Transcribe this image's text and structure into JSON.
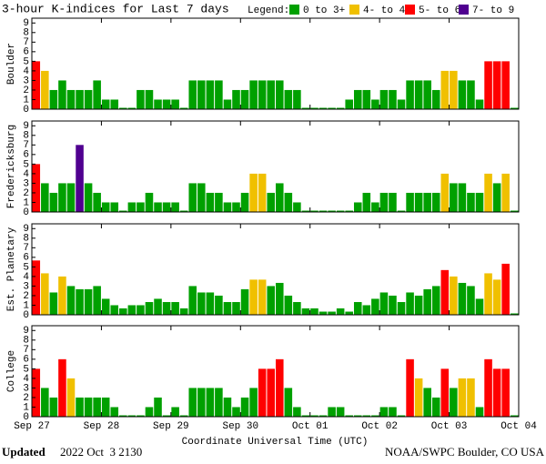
{
  "header": {
    "title": "3-hour K-indices for Last 7 days",
    "legend_label": "Legend:",
    "legend": [
      {
        "label": "0 to 3+",
        "color": "#00a000"
      },
      {
        "label": "4- to 4+",
        "color": "#f0c000"
      },
      {
        "label": "5- to 6+",
        "color": "#ff0000"
      },
      {
        "label": "7- to 9",
        "color": "#500090"
      }
    ]
  },
  "x_axis_label": "Coordinate Universal Time (UTC)",
  "footer": {
    "updated": "Updated",
    "date": "2022 Oct  3 2130",
    "credit": "NOAA/SWPC Boulder, CO USA"
  },
  "chart_data": [
    {
      "type": "bar",
      "ylabel": "Boulder",
      "ylim": [
        0,
        9.5
      ],
      "yticks": [
        0,
        1,
        2,
        3,
        4,
        5,
        6,
        7,
        8,
        9
      ],
      "xlim": [
        0,
        56
      ],
      "xticks": [
        0,
        8,
        16,
        24,
        32,
        40,
        48,
        56
      ],
      "values": [
        5,
        4,
        2,
        3,
        2,
        2,
        2,
        3,
        1,
        1,
        0,
        0,
        2,
        2,
        1,
        1,
        1,
        0,
        3,
        3,
        3,
        3,
        1,
        2,
        2,
        3,
        3,
        3,
        3,
        2,
        2,
        0,
        0,
        0,
        0,
        0,
        1,
        2,
        2,
        1,
        2,
        2,
        1,
        3,
        3,
        3,
        2,
        4,
        4,
        3,
        3,
        1,
        5,
        5,
        5,
        0
      ],
      "colors": [
        "#ff0000",
        "#f0c000",
        "#00a000",
        "#00a000",
        "#00a000",
        "#00a000",
        "#00a000",
        "#00a000",
        "#00a000",
        "#00a000",
        "#00a000",
        "#00a000",
        "#00a000",
        "#00a000",
        "#00a000",
        "#00a000",
        "#00a000",
        "#00a000",
        "#00a000",
        "#00a000",
        "#00a000",
        "#00a000",
        "#00a000",
        "#00a000",
        "#00a000",
        "#00a000",
        "#00a000",
        "#00a000",
        "#00a000",
        "#00a000",
        "#00a000",
        "#00a000",
        "#00a000",
        "#00a000",
        "#00a000",
        "#00a000",
        "#00a000",
        "#00a000",
        "#00a000",
        "#00a000",
        "#00a000",
        "#00a000",
        "#00a000",
        "#00a000",
        "#00a000",
        "#00a000",
        "#00a000",
        "#f0c000",
        "#f0c000",
        "#00a000",
        "#00a000",
        "#00a000",
        "#ff0000",
        "#ff0000",
        "#ff0000",
        "#00a000"
      ]
    },
    {
      "type": "bar",
      "ylabel": "Fredericksburg",
      "ylim": [
        0,
        9.5
      ],
      "yticks": [
        0,
        1,
        2,
        3,
        4,
        5,
        6,
        7,
        8,
        9
      ],
      "xlim": [
        0,
        56
      ],
      "xticks": [
        0,
        8,
        16,
        24,
        32,
        40,
        48,
        56
      ],
      "values": [
        5,
        3,
        2,
        3,
        3,
        7,
        3,
        2,
        1,
        1,
        0,
        1,
        1,
        2,
        1,
        1,
        1,
        0,
        3,
        3,
        2,
        2,
        1,
        1,
        2,
        4,
        4,
        2,
        3,
        2,
        1,
        0,
        0,
        0,
        0,
        0,
        0,
        1,
        2,
        1,
        2,
        2,
        0,
        2,
        2,
        2,
        2,
        4,
        3,
        3,
        2,
        2,
        4,
        3,
        4,
        0
      ],
      "colors": [
        "#ff0000",
        "#00a000",
        "#00a000",
        "#00a000",
        "#00a000",
        "#500090",
        "#00a000",
        "#00a000",
        "#00a000",
        "#00a000",
        "#00a000",
        "#00a000",
        "#00a000",
        "#00a000",
        "#00a000",
        "#00a000",
        "#00a000",
        "#00a000",
        "#00a000",
        "#00a000",
        "#00a000",
        "#00a000",
        "#00a000",
        "#00a000",
        "#00a000",
        "#f0c000",
        "#f0c000",
        "#00a000",
        "#00a000",
        "#00a000",
        "#00a000",
        "#00a000",
        "#00a000",
        "#00a000",
        "#00a000",
        "#00a000",
        "#00a000",
        "#00a000",
        "#00a000",
        "#00a000",
        "#00a000",
        "#00a000",
        "#00a000",
        "#00a000",
        "#00a000",
        "#00a000",
        "#00a000",
        "#f0c000",
        "#00a000",
        "#00a000",
        "#00a000",
        "#00a000",
        "#f0c000",
        "#00a000",
        "#f0c000",
        "#00a000"
      ]
    },
    {
      "type": "bar",
      "ylabel": "Est. Planetary",
      "ylim": [
        0,
        9.5
      ],
      "yticks": [
        0,
        1,
        2,
        3,
        4,
        5,
        6,
        7,
        8,
        9
      ],
      "xlim": [
        0,
        56
      ],
      "xticks": [
        0,
        8,
        16,
        24,
        32,
        40,
        48,
        56
      ],
      "values": [
        5.67,
        4.33,
        2.33,
        4,
        3,
        2.67,
        2.67,
        3,
        1.67,
        1,
        0.67,
        1,
        1,
        1.33,
        1.67,
        1.33,
        1.33,
        0.67,
        3,
        2.33,
        2.33,
        2,
        1.33,
        1.33,
        2.67,
        3.67,
        3.67,
        3,
        3.33,
        2,
        1.33,
        0.67,
        0.67,
        0.33,
        0.33,
        0.67,
        0.33,
        1.33,
        1,
        1.67,
        2.33,
        2,
        1.33,
        2.33,
        2,
        2.67,
        3,
        4.67,
        4,
        3.33,
        3,
        1.67,
        4.33,
        3.67,
        5.33,
        0
      ],
      "colors": [
        "#ff0000",
        "#f0c000",
        "#00a000",
        "#f0c000",
        "#00a000",
        "#00a000",
        "#00a000",
        "#00a000",
        "#00a000",
        "#00a000",
        "#00a000",
        "#00a000",
        "#00a000",
        "#00a000",
        "#00a000",
        "#00a000",
        "#00a000",
        "#00a000",
        "#00a000",
        "#00a000",
        "#00a000",
        "#00a000",
        "#00a000",
        "#00a000",
        "#00a000",
        "#f0c000",
        "#f0c000",
        "#00a000",
        "#00a000",
        "#00a000",
        "#00a000",
        "#00a000",
        "#00a000",
        "#00a000",
        "#00a000",
        "#00a000",
        "#00a000",
        "#00a000",
        "#00a000",
        "#00a000",
        "#00a000",
        "#00a000",
        "#00a000",
        "#00a000",
        "#00a000",
        "#00a000",
        "#00a000",
        "#ff0000",
        "#f0c000",
        "#00a000",
        "#00a000",
        "#00a000",
        "#f0c000",
        "#f0c000",
        "#ff0000",
        "#00a000"
      ]
    },
    {
      "type": "bar",
      "ylabel": "College",
      "ylim": [
        0,
        9.5
      ],
      "yticks": [
        0,
        1,
        2,
        3,
        4,
        5,
        6,
        7,
        8,
        9
      ],
      "xlim": [
        0,
        56
      ],
      "xticks": [
        {
          "value": 0,
          "label": "Sep 27"
        },
        {
          "value": 8,
          "label": "Sep 28"
        },
        {
          "value": 16,
          "label": "Sep 29"
        },
        {
          "value": 24,
          "label": "Sep 30"
        },
        {
          "value": 32,
          "label": "Oct 01"
        },
        {
          "value": 40,
          "label": "Oct 02"
        },
        {
          "value": 48,
          "label": "Oct 03"
        },
        {
          "value": 56,
          "label": "Oct 04"
        }
      ],
      "values": [
        5,
        3,
        2,
        6,
        4,
        2,
        2,
        2,
        2,
        1,
        0,
        0,
        0,
        1,
        2,
        0,
        1,
        0,
        3,
        3,
        3,
        3,
        2,
        1,
        2,
        3,
        5,
        5,
        6,
        3,
        1,
        0,
        0,
        0,
        1,
        1,
        0,
        0,
        0,
        0,
        1,
        1,
        0,
        6,
        4,
        3,
        2,
        5,
        3,
        4,
        4,
        1,
        6,
        5,
        5,
        0
      ],
      "colors": [
        "#ff0000",
        "#00a000",
        "#00a000",
        "#ff0000",
        "#f0c000",
        "#00a000",
        "#00a000",
        "#00a000",
        "#00a000",
        "#00a000",
        "#00a000",
        "#00a000",
        "#00a000",
        "#00a000",
        "#00a000",
        "#00a000",
        "#00a000",
        "#00a000",
        "#00a000",
        "#00a000",
        "#00a000",
        "#00a000",
        "#00a000",
        "#00a000",
        "#00a000",
        "#00a000",
        "#ff0000",
        "#ff0000",
        "#ff0000",
        "#00a000",
        "#00a000",
        "#00a000",
        "#00a000",
        "#00a000",
        "#00a000",
        "#00a000",
        "#00a000",
        "#00a000",
        "#00a000",
        "#00a000",
        "#00a000",
        "#00a000",
        "#00a000",
        "#ff0000",
        "#f0c000",
        "#00a000",
        "#00a000",
        "#ff0000",
        "#00a000",
        "#f0c000",
        "#f0c000",
        "#00a000",
        "#ff0000",
        "#ff0000",
        "#ff0000",
        "#00a000"
      ]
    }
  ]
}
